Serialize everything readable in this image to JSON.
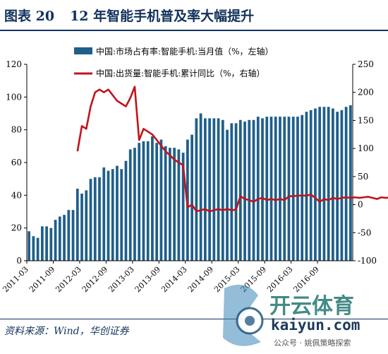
{
  "header": {
    "figure_no": "图表 20",
    "title": "12 年智能手机普及率大幅提升"
  },
  "source": "资料来源：Wind，华创证券",
  "watermark": {
    "brand": "开云体育",
    "url": "kaiyun.com",
    "account": "公众号 · 姚佩策略探索"
  },
  "colors": {
    "bar": "#1f5f8b",
    "line": "#c0141b",
    "title": "#12325c"
  },
  "chart_data": {
    "type": "bar+line",
    "legend_position": "top",
    "grid": false,
    "x_tick_labels": [
      "2011-03",
      "2011-09",
      "2012-03",
      "2012-09",
      "2013-03",
      "2013-09",
      "2014-03",
      "2014-09",
      "2015-03",
      "2015-09",
      "2016-03",
      "2016-09"
    ],
    "y_left": {
      "ticks": [
        0,
        20,
        40,
        60,
        80,
        100,
        120
      ],
      "ylim": [
        0,
        120
      ]
    },
    "y_right": {
      "ticks": [
        -100,
        -50,
        0,
        50,
        100,
        150,
        200,
        250
      ],
      "ylim": [
        -100,
        250
      ]
    },
    "series": [
      {
        "name": "中国:市场占有率:智能手机:当月值（%，左轴）",
        "type": "bar",
        "axis": "left",
        "start": "2011-03",
        "values": [
          18,
          15,
          14,
          21,
          21,
          20,
          25,
          27,
          28,
          31,
          31,
          44,
          41,
          43,
          50,
          51,
          51,
          57,
          55,
          56,
          58,
          56,
          61,
          68,
          69,
          72,
          73,
          73,
          76,
          72,
          74,
          70,
          69,
          69,
          68,
          66,
          74,
          77,
          87,
          90,
          87,
          87,
          87,
          87,
          86,
          80,
          84,
          84,
          86,
          85,
          86,
          86,
          88,
          87,
          88,
          88,
          88,
          88,
          88,
          88,
          88,
          88,
          89,
          91,
          92,
          93,
          94,
          94,
          94,
          93,
          91,
          92,
          94,
          95
        ]
      },
      {
        "name": "中国:出货量:智能手机:累计同比（%，右轴）",
        "type": "line",
        "axis": "right",
        "points": [
          [
            "2012-02",
            95
          ],
          [
            "2012-03",
            140
          ],
          [
            "2012-04",
            135
          ],
          [
            "2012-05",
            175
          ],
          [
            "2012-06",
            200
          ],
          [
            "2012-07",
            205
          ],
          [
            "2012-08",
            200
          ],
          [
            "2012-09",
            205
          ],
          [
            "2012-10",
            195
          ],
          [
            "2012-11",
            185
          ],
          [
            "2012-12",
            180
          ],
          [
            "2013-01",
            175
          ],
          [
            "2013-02",
            190
          ],
          [
            "2013-03",
            210
          ],
          [
            "2013-04",
            115
          ],
          [
            "2013-05",
            135
          ],
          [
            "2013-06",
            130
          ],
          [
            "2013-07",
            125
          ],
          [
            "2013-08",
            115
          ],
          [
            "2013-09",
            105
          ],
          [
            "2013-10",
            95
          ],
          [
            "2013-11",
            88
          ],
          [
            "2013-12",
            80
          ],
          [
            "2014-01",
            75
          ],
          [
            "2014-02",
            70
          ],
          [
            "2014-03",
            -5
          ],
          [
            "2014-04",
            0
          ],
          [
            "2014-05",
            -12
          ],
          [
            "2014-06",
            -10
          ],
          [
            "2014-07",
            -8
          ],
          [
            "2014-08",
            -12
          ],
          [
            "2014-09",
            -10
          ],
          [
            "2014-10",
            -8
          ],
          [
            "2014-11",
            -10
          ],
          [
            "2014-12",
            -8
          ],
          [
            "2015-01",
            -10
          ],
          [
            "2015-02",
            -9
          ],
          [
            "2015-03",
            15
          ],
          [
            "2015-04",
            10
          ],
          [
            "2015-05",
            8
          ],
          [
            "2015-06",
            5
          ],
          [
            "2015-07",
            10
          ],
          [
            "2015-08",
            12
          ],
          [
            "2015-09",
            8
          ],
          [
            "2015-10",
            10
          ],
          [
            "2015-11",
            8
          ],
          [
            "2015-12",
            10
          ],
          [
            "2016-01",
            8
          ],
          [
            "2016-02",
            15
          ],
          [
            "2016-03",
            15
          ],
          [
            "2016-04",
            16
          ],
          [
            "2016-05",
            16
          ],
          [
            "2016-06",
            16
          ],
          [
            "2016-07",
            18
          ],
          [
            "2016-08",
            12
          ],
          [
            "2016-09",
            5
          ],
          [
            "2016-10",
            10
          ],
          [
            "2016-11",
            8
          ],
          [
            "2016-12",
            12
          ],
          [
            "2017-01",
            10
          ],
          [
            "2017-02",
            12
          ],
          [
            "2017-03",
            13
          ],
          [
            "2017-04",
            12
          ],
          [
            "2017-05",
            13
          ],
          [
            "2017-06",
            12
          ],
          [
            "2017-07",
            13
          ],
          [
            "2017-08",
            14
          ],
          [
            "2017-09",
            12
          ],
          [
            "2017-10",
            10
          ],
          [
            "2017-11",
            13
          ],
          [
            "2017-12",
            12
          ],
          [
            "2018-01",
            13
          ],
          [
            "2018-02",
            5
          ]
        ]
      }
    ]
  }
}
